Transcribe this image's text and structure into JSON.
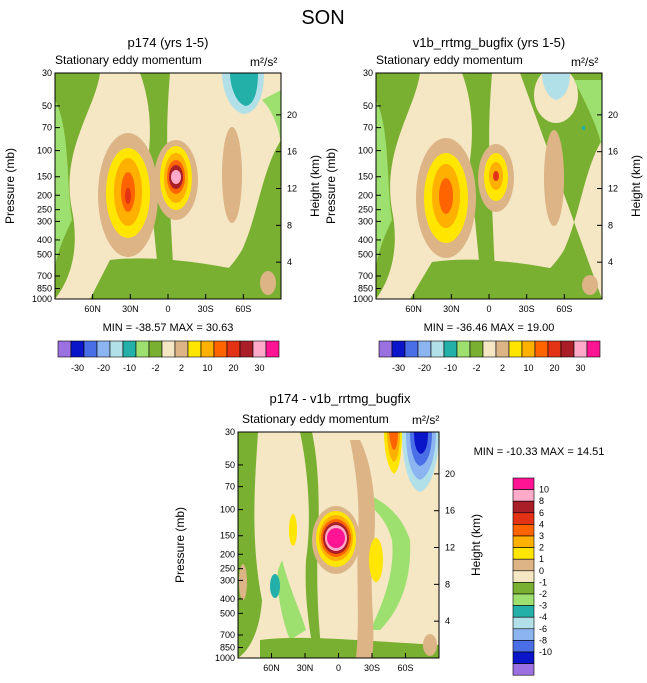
{
  "page_title": "SON",
  "colorbar": {
    "colors": [
      "#9b70e0",
      "#0a14c8",
      "#4a6ee6",
      "#8cb4f0",
      "#b2e0e8",
      "#22b0a8",
      "#9ee070",
      "#7ab032",
      "#f5e6c4",
      "#dcb486",
      "#ffe600",
      "#ffb000",
      "#ff6400",
      "#e43214",
      "#aa1e28",
      "#ffaac8",
      "#ff1493"
    ],
    "horizontal_labels": [
      "-30",
      "-20",
      "-10",
      "-2",
      "2",
      "10",
      "20",
      "30"
    ],
    "vertical_labels": [
      "10",
      "8",
      "6",
      "4",
      "3",
      "2",
      "1",
      "0",
      "-1",
      "-2",
      "-3",
      "-4",
      "-6",
      "-8",
      "-10"
    ]
  },
  "chart_data": [
    {
      "type": "contour",
      "title": "p174 (yrs 1-5)",
      "subtitle": "Stationary eddy momentum",
      "units": "m²/s²",
      "ylabel": "Pressure (mb)",
      "y2label": "Height (km)",
      "yticks": [
        "30",
        "50",
        "70",
        "100",
        "150",
        "200",
        "250",
        "300",
        "400",
        "500",
        "700",
        "850",
        "1000"
      ],
      "y2ticks": [
        "20",
        "16",
        "12",
        "8",
        "4"
      ],
      "xticks": [
        "60N",
        "30N",
        "0",
        "30S",
        "60S"
      ],
      "min": -38.57,
      "max": 30.63,
      "stats_text": "MIN = -38.57  MAX =  30.63",
      "features": [
        {
          "lat": 30,
          "p": 200,
          "value": 25,
          "desc": "positive max"
        },
        {
          "lat": 3,
          "p": 150,
          "value": 30,
          "desc": "positive core"
        },
        {
          "lat": -65,
          "p": 40,
          "value": -10,
          "desc": "negative"
        }
      ]
    },
    {
      "type": "contour",
      "title": "v1b_rrtmg_bugfix (yrs 1-5)",
      "subtitle": "Stationary eddy momentum",
      "units": "m²/s²",
      "ylabel": "Pressure (mb)",
      "y2label": "Height (km)",
      "yticks": [
        "30",
        "50",
        "70",
        "100",
        "150",
        "200",
        "250",
        "300",
        "400",
        "500",
        "700",
        "850",
        "1000"
      ],
      "y2ticks": [
        "20",
        "16",
        "12",
        "8",
        "4"
      ],
      "xticks": [
        "60N",
        "30N",
        "0",
        "30S",
        "60S"
      ],
      "min": -36.46,
      "max": 19.0,
      "stats_text": "MIN = -36.46  MAX =  19.00",
      "features": [
        {
          "lat": 30,
          "p": 200,
          "value": 19,
          "desc": "positive max"
        },
        {
          "lat": 3,
          "p": 150,
          "value": 15,
          "desc": "positive core"
        },
        {
          "lat": -65,
          "p": 40,
          "value": -4,
          "desc": "negative"
        }
      ]
    },
    {
      "type": "contour",
      "title": "p174 - v1b_rrtmg_bugfix",
      "subtitle": "Stationary eddy momentum",
      "units": "m²/s²",
      "ylabel": "Pressure (mb)",
      "y2label": "Height (km)",
      "yticks": [
        "30",
        "50",
        "70",
        "100",
        "150",
        "200",
        "250",
        "300",
        "400",
        "500",
        "700",
        "850",
        "1000"
      ],
      "y2ticks": [
        "20",
        "16",
        "12",
        "8",
        "4"
      ],
      "xticks": [
        "60N",
        "30N",
        "0",
        "30S",
        "60S"
      ],
      "min": -10.33,
      "max": 14.51,
      "stats_text": "MIN = -10.33  MAX =  14.51",
      "features": [
        {
          "lat": 3,
          "p": 150,
          "value": 14,
          "desc": "positive core"
        },
        {
          "lat": -55,
          "p": 40,
          "value": 6,
          "desc": "positive"
        },
        {
          "lat": -70,
          "p": 40,
          "value": -10,
          "desc": "negative"
        }
      ]
    }
  ]
}
